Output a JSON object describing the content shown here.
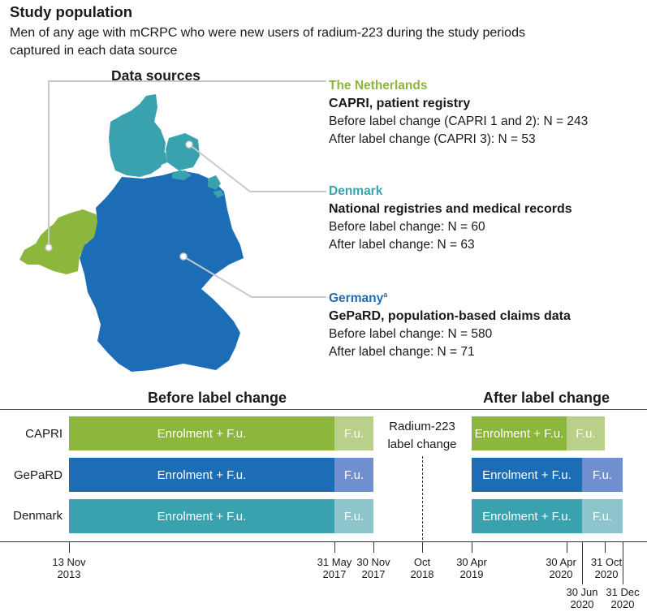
{
  "header": {
    "title": "Study population",
    "subtitle_line1": "Men of any age with mCRPC who were new users of radium-223 during the study periods",
    "subtitle_line2": "captured in each data source"
  },
  "data_sources": {
    "title": "Data sources",
    "netherlands": {
      "country": "The Netherlands",
      "desc": "CAPRI, patient registry",
      "line1": "Before label change (CAPRI 1 and 2): N = 243",
      "line2": "After label change (CAPRI 3): N = 53"
    },
    "denmark": {
      "country": "Denmark",
      "desc": "National registries and medical records",
      "line1": "Before label change: N = 60",
      "line2": "After label change: N = 63"
    },
    "germany": {
      "country": "Germany",
      "sup": "a",
      "desc": "GePaRD, population-based claims data",
      "line1": "Before label change: N = 580",
      "line2": "After label change: N = 71"
    }
  },
  "timeline": {
    "before_title": "Before label change",
    "after_title": "After label change",
    "change_label_1": "Radium-223",
    "change_label_2": "label change",
    "rows": [
      {
        "name": "CAPRI",
        "enrol": "Enrolment + F.u.",
        "fu": "F.u.",
        "enrol2": "Enrolment + F.u.",
        "fu2": "F.u."
      },
      {
        "name": "GePaRD",
        "enrol": "Enrolment + F.u.",
        "fu": "F.u.",
        "enrol2": "Enrolment + F.u.",
        "fu2": "F.u."
      },
      {
        "name": "Denmark",
        "enrol": "Enrolment + F.u.",
        "fu": "F.u.",
        "enrol2": "Enrolment + F.u.",
        "fu2": "F.u."
      }
    ],
    "ticks": [
      {
        "l1": "13 Nov",
        "l2": "2013"
      },
      {
        "l1": "31 May",
        "l2": "2017"
      },
      {
        "l1": "30 Nov",
        "l2": "2017"
      },
      {
        "l1": "Oct",
        "l2": "2018"
      },
      {
        "l1": "30 Apr",
        "l2": "2019"
      },
      {
        "l1": "30 Apr",
        "l2": "2020"
      },
      {
        "l1": "31 Oct",
        "l2": "2020"
      },
      {
        "l1": "30 Jun",
        "l2": "2020"
      },
      {
        "l1": "31 Dec",
        "l2": "2020"
      }
    ]
  },
  "colors": {
    "nl_green": "#8cb63c",
    "nl_green_light": "#b9d08a",
    "dk_teal": "#3aa2ae",
    "dk_teal_light": "#8cc5cc",
    "de_blue": "#1d6db6",
    "de_blue_light": "#6f8fcf"
  }
}
